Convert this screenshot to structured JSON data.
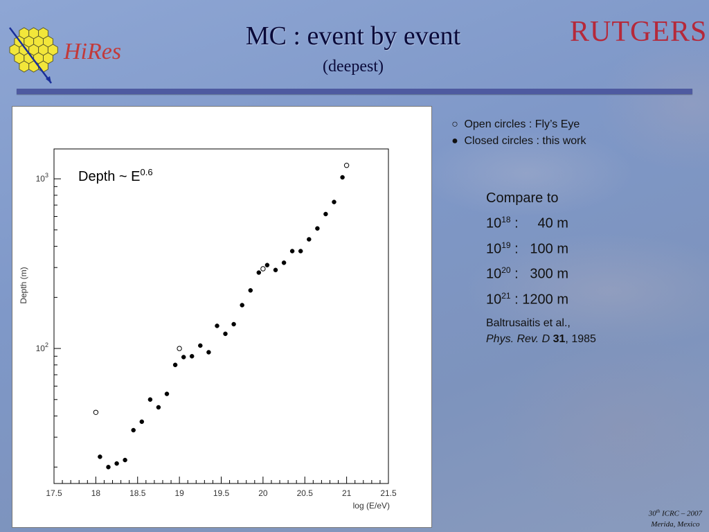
{
  "slide": {
    "title": "MC : event by event",
    "subtitle": "(deepest)",
    "logo_left_text": "HiRes",
    "logo_right_text": "RUTGERS"
  },
  "legend": {
    "open_symbol": "○",
    "open_text": "Open circles : Fly’s Eye",
    "closed_symbol": "●",
    "closed_text": "Closed circles : this work"
  },
  "compare": {
    "heading": "Compare to",
    "rows": [
      {
        "base": "10",
        "exp": "18",
        "rest": " :     40 m"
      },
      {
        "base": "10",
        "exp": "19",
        "rest": " :   100 m"
      },
      {
        "base": "10",
        "exp": "20",
        "rest": " :   300 m"
      },
      {
        "base": "10",
        "exp": "21",
        "rest": " : 1200 m"
      }
    ]
  },
  "reference": {
    "authors": "Baltrusaitis et al.,",
    "journal": "Phys. Rev. D",
    "volume": "31",
    "year": ", 1985"
  },
  "footer": {
    "num": "30",
    "sup": "th",
    "conf": " ICRC – 2007",
    "place": "Merida, Mexico"
  },
  "colors": {
    "title": "#0a0a3a",
    "rutgers": "#b5293a",
    "rule": "#4e5aa0",
    "marker": "#000000"
  },
  "chart_data": {
    "type": "scatter",
    "annotation": {
      "text": "Depth ~ E",
      "exp": "0.6"
    },
    "xlabel": "log (E/eV)",
    "ylabel": "Depth (m)",
    "xlim": [
      17.5,
      21.5
    ],
    "ylim": [
      16,
      1500
    ],
    "yscale": "log",
    "xticks": [
      17.5,
      18,
      18.5,
      19,
      19.5,
      20,
      20.5,
      21,
      21.5
    ],
    "xtick_labels": [
      "17.5",
      "18",
      "18.5",
      "19",
      "19.5",
      "20",
      "20.5",
      "21",
      "21.5"
    ],
    "yticks": [
      {
        "value": 100,
        "base": "10",
        "exp": "2"
      },
      {
        "value": 1000,
        "base": "10",
        "exp": "3"
      }
    ],
    "series": [
      {
        "marker": "closed",
        "x": [
          18.05,
          18.15,
          18.25,
          18.35,
          18.45,
          18.55,
          18.65,
          18.75,
          18.85,
          18.95,
          19.05,
          19.15,
          19.25,
          19.35,
          19.45,
          19.55,
          19.65,
          19.75,
          19.85,
          19.95,
          20.05,
          20.15,
          20.25,
          20.35,
          20.45,
          20.55,
          20.65,
          20.75,
          20.85,
          20.95
        ],
        "y": [
          23,
          20,
          21,
          22,
          33,
          37,
          50,
          45,
          54,
          80,
          89,
          90,
          104,
          95,
          136,
          122,
          139,
          180,
          220,
          280,
          310,
          290,
          320,
          375,
          375,
          440,
          510,
          620,
          730,
          1020
        ]
      },
      {
        "marker": "open",
        "x": [
          18.0,
          19.0,
          20.0,
          21.0
        ],
        "y": [
          42,
          100,
          295,
          1200
        ]
      }
    ]
  }
}
